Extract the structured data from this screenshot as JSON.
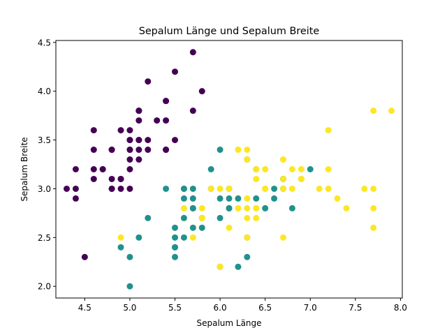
{
  "chart_data": {
    "type": "scatter",
    "title": "Sepalum Länge und Sepalum Breite",
    "xlabel": "Sepalum Länge",
    "ylabel": "Sepalum Breite",
    "xlim": [
      4.18,
      8.02
    ],
    "ylim": [
      1.88,
      4.52
    ],
    "xticks": [
      "4.5",
      "5.0",
      "5.5",
      "6.0",
      "6.5",
      "7.0",
      "7.5",
      "8.0"
    ],
    "yticks": [
      "2.0",
      "2.5",
      "3.0",
      "3.5",
      "4.0",
      "4.5"
    ],
    "grid": false,
    "series": [
      {
        "color": "#440154",
        "points": [
          [
            5.1,
            3.5
          ],
          [
            4.9,
            3.0
          ],
          [
            4.7,
            3.2
          ],
          [
            4.6,
            3.1
          ],
          [
            5.0,
            3.6
          ],
          [
            5.4,
            3.9
          ],
          [
            4.6,
            3.4
          ],
          [
            5.0,
            3.4
          ],
          [
            4.4,
            2.9
          ],
          [
            4.9,
            3.1
          ],
          [
            5.4,
            3.7
          ],
          [
            4.8,
            3.4
          ],
          [
            4.8,
            3.0
          ],
          [
            4.3,
            3.0
          ],
          [
            5.8,
            4.0
          ],
          [
            5.7,
            4.4
          ],
          [
            5.4,
            3.9
          ],
          [
            5.1,
            3.5
          ],
          [
            5.7,
            3.8
          ],
          [
            5.1,
            3.8
          ],
          [
            5.4,
            3.4
          ],
          [
            5.1,
            3.7
          ],
          [
            4.6,
            3.6
          ],
          [
            5.1,
            3.3
          ],
          [
            4.8,
            3.4
          ],
          [
            5.0,
            3.0
          ],
          [
            5.0,
            3.4
          ],
          [
            5.2,
            3.5
          ],
          [
            5.2,
            3.4
          ],
          [
            4.7,
            3.2
          ],
          [
            4.8,
            3.1
          ],
          [
            5.4,
            3.4
          ],
          [
            5.2,
            4.1
          ],
          [
            5.5,
            4.2
          ],
          [
            4.9,
            3.1
          ],
          [
            5.0,
            3.2
          ],
          [
            5.5,
            3.5
          ],
          [
            4.9,
            3.6
          ],
          [
            4.4,
            3.0
          ],
          [
            5.1,
            3.4
          ],
          [
            5.0,
            3.5
          ],
          [
            4.5,
            2.3
          ],
          [
            4.4,
            3.2
          ],
          [
            5.0,
            3.5
          ],
          [
            5.1,
            3.8
          ],
          [
            4.8,
            3.0
          ],
          [
            5.1,
            3.8
          ],
          [
            4.6,
            3.2
          ],
          [
            5.3,
            3.7
          ],
          [
            5.0,
            3.3
          ]
        ]
      },
      {
        "color": "#21918c",
        "points": [
          [
            7.0,
            3.2
          ],
          [
            6.4,
            3.2
          ],
          [
            6.9,
            3.1
          ],
          [
            5.5,
            2.3
          ],
          [
            6.5,
            2.8
          ],
          [
            5.7,
            2.8
          ],
          [
            6.3,
            3.3
          ],
          [
            4.9,
            2.4
          ],
          [
            6.6,
            2.9
          ],
          [
            5.2,
            2.7
          ],
          [
            5.0,
            2.0
          ],
          [
            5.9,
            3.0
          ],
          [
            6.0,
            2.2
          ],
          [
            6.1,
            2.9
          ],
          [
            5.6,
            2.9
          ],
          [
            6.7,
            3.1
          ],
          [
            5.6,
            3.0
          ],
          [
            5.8,
            2.7
          ],
          [
            6.2,
            2.2
          ],
          [
            5.6,
            2.5
          ],
          [
            5.9,
            3.2
          ],
          [
            6.1,
            2.8
          ],
          [
            6.3,
            2.5
          ],
          [
            6.1,
            2.8
          ],
          [
            6.4,
            2.9
          ],
          [
            6.6,
            3.0
          ],
          [
            6.8,
            2.8
          ],
          [
            6.7,
            3.0
          ],
          [
            6.0,
            2.9
          ],
          [
            5.7,
            2.6
          ],
          [
            5.5,
            2.4
          ],
          [
            5.5,
            2.4
          ],
          [
            5.8,
            2.7
          ],
          [
            6.0,
            2.7
          ],
          [
            5.4,
            3.0
          ],
          [
            6.0,
            3.4
          ],
          [
            6.7,
            3.1
          ],
          [
            6.3,
            2.3
          ],
          [
            5.6,
            3.0
          ],
          [
            5.5,
            2.5
          ],
          [
            5.5,
            2.6
          ],
          [
            6.1,
            3.0
          ],
          [
            5.8,
            2.6
          ],
          [
            5.0,
            2.3
          ],
          [
            5.6,
            2.7
          ],
          [
            5.7,
            3.0
          ],
          [
            5.7,
            2.9
          ],
          [
            6.2,
            2.9
          ],
          [
            5.1,
            2.5
          ],
          [
            5.7,
            2.8
          ]
        ]
      },
      {
        "color": "#fde725",
        "points": [
          [
            6.3,
            3.3
          ],
          [
            5.8,
            2.7
          ],
          [
            7.1,
            3.0
          ],
          [
            6.3,
            2.9
          ],
          [
            6.5,
            3.0
          ],
          [
            7.6,
            3.0
          ],
          [
            4.9,
            2.5
          ],
          [
            7.3,
            2.9
          ],
          [
            6.7,
            2.5
          ],
          [
            7.2,
            3.6
          ],
          [
            6.5,
            3.2
          ],
          [
            6.4,
            2.7
          ],
          [
            6.8,
            3.0
          ],
          [
            5.7,
            2.5
          ],
          [
            5.8,
            2.8
          ],
          [
            6.4,
            3.2
          ],
          [
            6.5,
            3.0
          ],
          [
            7.7,
            3.8
          ],
          [
            7.7,
            2.6
          ],
          [
            6.0,
            2.2
          ],
          [
            6.9,
            3.2
          ],
          [
            5.6,
            2.8
          ],
          [
            7.7,
            2.8
          ],
          [
            6.3,
            2.7
          ],
          [
            6.7,
            3.3
          ],
          [
            7.2,
            3.2
          ],
          [
            6.2,
            2.8
          ],
          [
            6.1,
            3.0
          ],
          [
            6.4,
            2.8
          ],
          [
            7.2,
            3.0
          ],
          [
            7.4,
            2.8
          ],
          [
            7.9,
            3.8
          ],
          [
            6.4,
            2.8
          ],
          [
            6.3,
            2.8
          ],
          [
            6.1,
            2.6
          ],
          [
            7.7,
            3.0
          ],
          [
            6.3,
            3.4
          ],
          [
            6.4,
            3.1
          ],
          [
            6.0,
            3.0
          ],
          [
            6.9,
            3.1
          ],
          [
            6.7,
            3.1
          ],
          [
            6.9,
            3.1
          ],
          [
            5.8,
            2.7
          ],
          [
            6.8,
            3.2
          ],
          [
            6.7,
            3.3
          ],
          [
            6.7,
            3.0
          ],
          [
            6.3,
            2.5
          ],
          [
            6.5,
            3.0
          ],
          [
            6.2,
            3.4
          ],
          [
            5.9,
            3.0
          ]
        ]
      }
    ]
  }
}
